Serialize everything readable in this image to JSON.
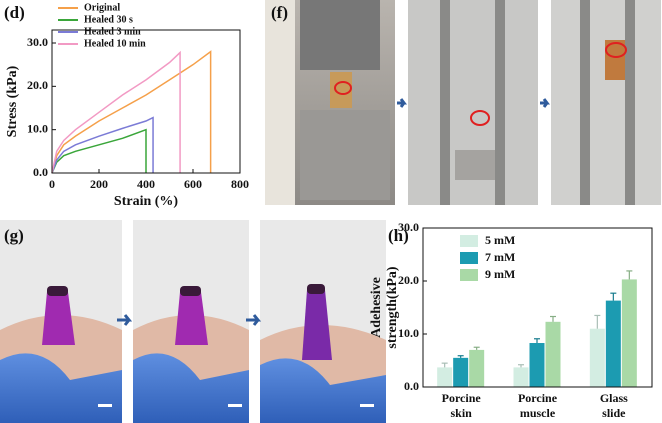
{
  "panel_labels": [
    "(d)",
    "(f)",
    "(g)",
    "(h)"
  ],
  "chart_data": [
    {
      "type": "line",
      "xlabel": "Strain (%)",
      "ylabel": "Stress (kPa)",
      "xlim": [
        0,
        800
      ],
      "xticks": [
        0,
        200,
        400,
        600,
        800
      ],
      "ylim": [
        0,
        33
      ],
      "yticks": [
        {
          "value": 0,
          "label": "0.0"
        },
        {
          "value": 10,
          "label": "10.0"
        },
        {
          "value": 20,
          "label": "20.0"
        },
        {
          "value": 30,
          "label": "30.0"
        }
      ],
      "legend": "upper left",
      "series": [
        {
          "name": "Original",
          "color": "#f5a04a",
          "x": [
            0,
            20,
            50,
            100,
            200,
            300,
            400,
            500,
            600,
            675,
            675
          ],
          "values": [
            0,
            4,
            6.5,
            8.5,
            12,
            15,
            18,
            21.5,
            25,
            28,
            0
          ]
        },
        {
          "name": "Healed 30 s",
          "color": "#3aa63a",
          "x": [
            0,
            20,
            50,
            100,
            200,
            300,
            400,
            400
          ],
          "values": [
            0,
            2.5,
            4,
            5,
            6.5,
            8,
            10,
            0
          ]
        },
        {
          "name": "Healed 3 min",
          "color": "#7b7bd6",
          "x": [
            0,
            20,
            50,
            100,
            200,
            300,
            400,
            430,
            430
          ],
          "values": [
            0,
            3,
            5,
            6.5,
            8.5,
            10.3,
            12,
            12.8,
            0
          ]
        },
        {
          "name": "Healed 10 min",
          "color": "#f29ac4",
          "x": [
            0,
            20,
            50,
            100,
            200,
            300,
            400,
            500,
            545,
            545
          ],
          "values": [
            0,
            5,
            7.5,
            10,
            14,
            18,
            21.5,
            25.5,
            27.8,
            0
          ]
        }
      ]
    },
    {
      "type": "bar",
      "ylabel": [
        "Adehesive",
        "strength(kPa)"
      ],
      "categories": [
        [
          "Porcine",
          "skin"
        ],
        [
          "Porcine",
          "muscle"
        ],
        [
          "Glass",
          "slide"
        ]
      ],
      "ylim": [
        0,
        30
      ],
      "yticks": [
        {
          "value": 0,
          "label": "0.0"
        },
        {
          "value": 10,
          "label": "10.0"
        },
        {
          "value": 20,
          "label": "20.0"
        },
        {
          "value": 30,
          "label": "30.0"
        }
      ],
      "legend": "upper left",
      "series": [
        {
          "name": "5 mM",
          "color": "#d3ede2",
          "values": [
            3.7,
            3.7,
            11.0
          ],
          "errors": [
            0.8,
            0.5,
            2.5
          ]
        },
        {
          "name": "7 mM",
          "color": "#1c9bb1",
          "values": [
            5.5,
            8.3,
            16.3
          ],
          "errors": [
            0.4,
            0.8,
            1.4
          ]
        },
        {
          "name": "9 mM",
          "color": "#a9d9a6",
          "values": [
            7.0,
            12.3,
            20.3
          ],
          "errors": [
            0.5,
            1.0,
            1.6
          ]
        }
      ]
    }
  ]
}
